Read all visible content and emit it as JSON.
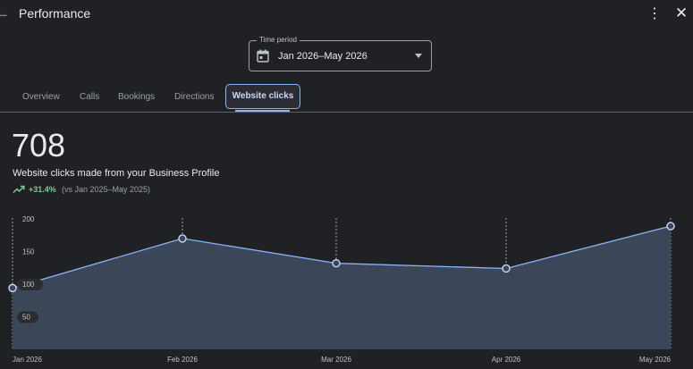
{
  "header": {
    "title": "Performance",
    "back_icon": "arrow-back-icon",
    "more_icon": "more-vert-icon",
    "close_icon": "close-icon"
  },
  "time_period": {
    "label": "Time period",
    "value": "Jan 2026–May 2026",
    "icon": "calendar-icon"
  },
  "tabs": [
    {
      "label": "Overview",
      "selected": false
    },
    {
      "label": "Calls",
      "selected": false
    },
    {
      "label": "Bookings",
      "selected": false
    },
    {
      "label": "Directions",
      "selected": false
    },
    {
      "label": "Website clicks",
      "selected": true
    }
  ],
  "metric": {
    "value": "708",
    "caption": "Website clicks made from your Business Profile",
    "change": "+31.4%",
    "comparison": "(vs Jan 2025–May 2025)"
  },
  "colors": {
    "background": "#202124",
    "accent": "#8ab4f8",
    "positive": "#81c995",
    "area_fill": "#3c4659"
  },
  "chart_data": {
    "type": "area",
    "categories": [
      "Jan 2026",
      "Feb 2026",
      "Mar 2026",
      "Apr 2026",
      "May 2026"
    ],
    "x_tick_labels": [
      "Jan 2026",
      "Feb 2026",
      "Mar 2026",
      "Apr 2026",
      "May 2026"
    ],
    "series": [
      {
        "values": [
          94,
          170,
          132,
          124,
          189
        ]
      }
    ],
    "y_ticks": [
      200,
      150,
      100,
      50
    ],
    "ylim": [
      0,
      200
    ],
    "grid": "vertical dashed at each month",
    "legend": "none"
  }
}
